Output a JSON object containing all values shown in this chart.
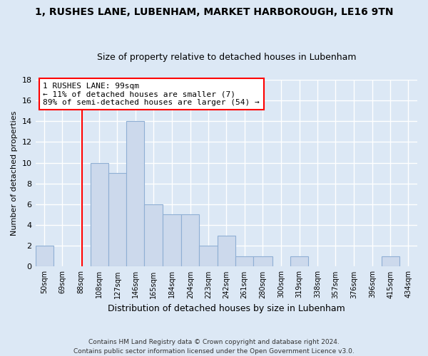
{
  "title": "1, RUSHES LANE, LUBENHAM, MARKET HARBOROUGH, LE16 9TN",
  "subtitle": "Size of property relative to detached houses in Lubenham",
  "xlabel": "Distribution of detached houses by size in Lubenham",
  "ylabel": "Number of detached properties",
  "bar_labels": [
    "50sqm",
    "69sqm",
    "88sqm",
    "108sqm",
    "127sqm",
    "146sqm",
    "165sqm",
    "184sqm",
    "204sqm",
    "223sqm",
    "242sqm",
    "261sqm",
    "280sqm",
    "300sqm",
    "319sqm",
    "338sqm",
    "357sqm",
    "376sqm",
    "396sqm",
    "415sqm",
    "434sqm"
  ],
  "counts": [
    2,
    0,
    0,
    10,
    9,
    14,
    6,
    5,
    5,
    2,
    3,
    1,
    1,
    0,
    1,
    0,
    0,
    0,
    0,
    1,
    0
  ],
  "bin_edges": [
    50,
    69,
    88,
    108,
    127,
    146,
    165,
    184,
    204,
    223,
    242,
    261,
    280,
    300,
    319,
    338,
    357,
    376,
    396,
    415,
    434,
    453
  ],
  "bar_color": "#ccd9ec",
  "bar_edge_color": "#8fafd4",
  "vline_x": 99,
  "vline_color": "red",
  "annotation_text": "1 RUSHES LANE: 99sqm\n← 11% of detached houses are smaller (7)\n89% of semi-detached houses are larger (54) →",
  "annotation_box_color": "white",
  "annotation_box_edge_color": "red",
  "ylim": [
    0,
    18
  ],
  "yticks": [
    0,
    2,
    4,
    6,
    8,
    10,
    12,
    14,
    16,
    18
  ],
  "footer_text": "Contains HM Land Registry data © Crown copyright and database right 2024.\nContains public sector information licensed under the Open Government Licence v3.0.",
  "bg_color": "#dce8f5",
  "plot_bg_color": "#dce8f5",
  "grid_color": "white",
  "title_fontsize": 10,
  "subtitle_fontsize": 9
}
